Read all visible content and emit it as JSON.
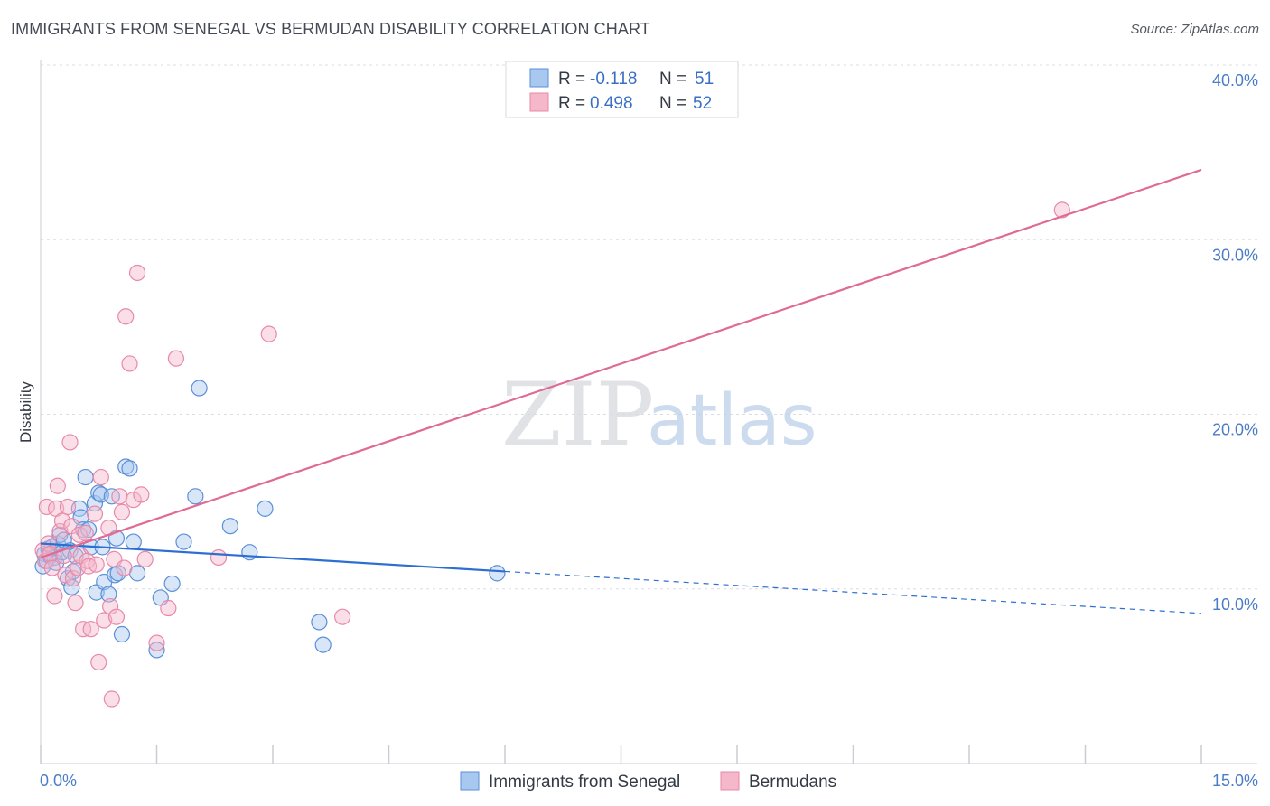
{
  "title": "IMMIGRANTS FROM SENEGAL VS BERMUDAN DISABILITY CORRELATION CHART",
  "source": "Source: ZipAtlas.com",
  "watermark": {
    "zip": "ZIP",
    "atlas": "atlas"
  },
  "colors": {
    "blue_fill": "#a9c8ef",
    "blue_stroke": "#5b8fd8",
    "blue_line": "#2d6fd1",
    "pink_fill": "#f5b8cb",
    "pink_stroke": "#e889a8",
    "pink_line": "#e06a93",
    "tick": "#4a7cc7",
    "grid": "#d9dde3"
  },
  "legend": {
    "rows": [
      {
        "r_label": "R = ",
        "r_value": "-0.118",
        "n_label": "N = ",
        "n_value": "51"
      },
      {
        "r_label": "R = ",
        "r_value": "0.498",
        "n_label": "N = ",
        "n_value": "52"
      }
    ]
  },
  "bottom_legend": [
    "Immigrants from Senegal",
    "Bermudans"
  ],
  "chart_data": {
    "type": "scatter",
    "title": "IMMIGRANTS FROM SENEGAL VS BERMUDAN DISABILITY CORRELATION CHART",
    "xlabel": "",
    "ylabel": "Disability",
    "xlim": [
      0,
      15
    ],
    "ylim": [
      0,
      40
    ],
    "x_tick_labels": [
      "0.0%",
      "15.0%"
    ],
    "y_ticks": [
      10,
      20,
      30,
      40
    ],
    "y_tick_labels": [
      "10.0%",
      "20.0%",
      "30.0%",
      "40.0%"
    ],
    "grid": true,
    "series": [
      {
        "name": "Immigrants from Senegal",
        "R": -0.118,
        "N": 51,
        "trend": {
          "x0": 0,
          "y0": 12.6,
          "x1": 15,
          "y1": 8.6,
          "solid_until_x": 6.0
        },
        "points": [
          [
            0.03,
            11.3
          ],
          [
            0.05,
            12.0
          ],
          [
            0.08,
            11.6
          ],
          [
            0.1,
            12.3
          ],
          [
            0.12,
            11.9
          ],
          [
            0.15,
            12.4
          ],
          [
            0.18,
            11.8
          ],
          [
            0.2,
            11.5
          ],
          [
            0.22,
            12.6
          ],
          [
            0.25,
            13.1
          ],
          [
            0.28,
            12.1
          ],
          [
            0.3,
            12.8
          ],
          [
            0.35,
            10.6
          ],
          [
            0.38,
            12.2
          ],
          [
            0.4,
            10.1
          ],
          [
            0.42,
            11.0
          ],
          [
            0.45,
            11.9
          ],
          [
            0.5,
            14.6
          ],
          [
            0.52,
            14.1
          ],
          [
            0.55,
            13.4
          ],
          [
            0.58,
            16.4
          ],
          [
            0.62,
            13.4
          ],
          [
            0.65,
            12.4
          ],
          [
            0.7,
            14.9
          ],
          [
            0.72,
            9.8
          ],
          [
            0.75,
            15.5
          ],
          [
            0.78,
            15.4
          ],
          [
            0.8,
            12.4
          ],
          [
            0.82,
            10.4
          ],
          [
            0.88,
            9.7
          ],
          [
            0.92,
            15.3
          ],
          [
            0.96,
            10.8
          ],
          [
            0.98,
            12.9
          ],
          [
            1.0,
            10.9
          ],
          [
            1.05,
            7.4
          ],
          [
            1.1,
            17.0
          ],
          [
            1.15,
            16.9
          ],
          [
            1.2,
            12.7
          ],
          [
            1.25,
            10.9
          ],
          [
            1.5,
            6.5
          ],
          [
            1.55,
            9.5
          ],
          [
            1.7,
            10.3
          ],
          [
            1.85,
            12.7
          ],
          [
            2.0,
            15.3
          ],
          [
            2.05,
            21.5
          ],
          [
            2.45,
            13.6
          ],
          [
            2.7,
            12.1
          ],
          [
            2.9,
            14.6
          ],
          [
            3.6,
            8.1
          ],
          [
            3.65,
            6.8
          ],
          [
            5.9,
            10.9
          ]
        ]
      },
      {
        "name": "Bermudans",
        "R": 0.498,
        "N": 52,
        "trend": {
          "x0": 0,
          "y0": 11.8,
          "x1": 15,
          "y1": 34.0
        },
        "points": [
          [
            0.03,
            12.2
          ],
          [
            0.06,
            11.6
          ],
          [
            0.08,
            14.7
          ],
          [
            0.1,
            12.6
          ],
          [
            0.12,
            12.0
          ],
          [
            0.15,
            11.2
          ],
          [
            0.18,
            9.6
          ],
          [
            0.2,
            14.6
          ],
          [
            0.22,
            15.9
          ],
          [
            0.25,
            13.3
          ],
          [
            0.28,
            13.9
          ],
          [
            0.3,
            11.9
          ],
          [
            0.32,
            10.8
          ],
          [
            0.35,
            14.7
          ],
          [
            0.38,
            18.4
          ],
          [
            0.4,
            13.6
          ],
          [
            0.42,
            10.6
          ],
          [
            0.45,
            9.2
          ],
          [
            0.48,
            11.2
          ],
          [
            0.5,
            13.1
          ],
          [
            0.52,
            11.9
          ],
          [
            0.55,
            7.7
          ],
          [
            0.58,
            13.2
          ],
          [
            0.6,
            11.6
          ],
          [
            0.62,
            11.3
          ],
          [
            0.65,
            7.7
          ],
          [
            0.7,
            14.3
          ],
          [
            0.72,
            11.4
          ],
          [
            0.75,
            5.8
          ],
          [
            0.78,
            16.4
          ],
          [
            0.82,
            8.2
          ],
          [
            0.88,
            13.5
          ],
          [
            0.9,
            9.0
          ],
          [
            0.92,
            3.7
          ],
          [
            0.95,
            11.7
          ],
          [
            0.98,
            8.4
          ],
          [
            1.02,
            15.3
          ],
          [
            1.05,
            14.4
          ],
          [
            1.08,
            11.2
          ],
          [
            1.1,
            25.6
          ],
          [
            1.15,
            22.9
          ],
          [
            1.2,
            15.1
          ],
          [
            1.25,
            28.1
          ],
          [
            1.3,
            15.4
          ],
          [
            1.35,
            11.7
          ],
          [
            1.5,
            6.9
          ],
          [
            1.65,
            8.9
          ],
          [
            1.75,
            23.2
          ],
          [
            2.3,
            11.8
          ],
          [
            2.95,
            24.6
          ],
          [
            3.9,
            8.4
          ],
          [
            13.2,
            31.7
          ]
        ]
      }
    ]
  }
}
